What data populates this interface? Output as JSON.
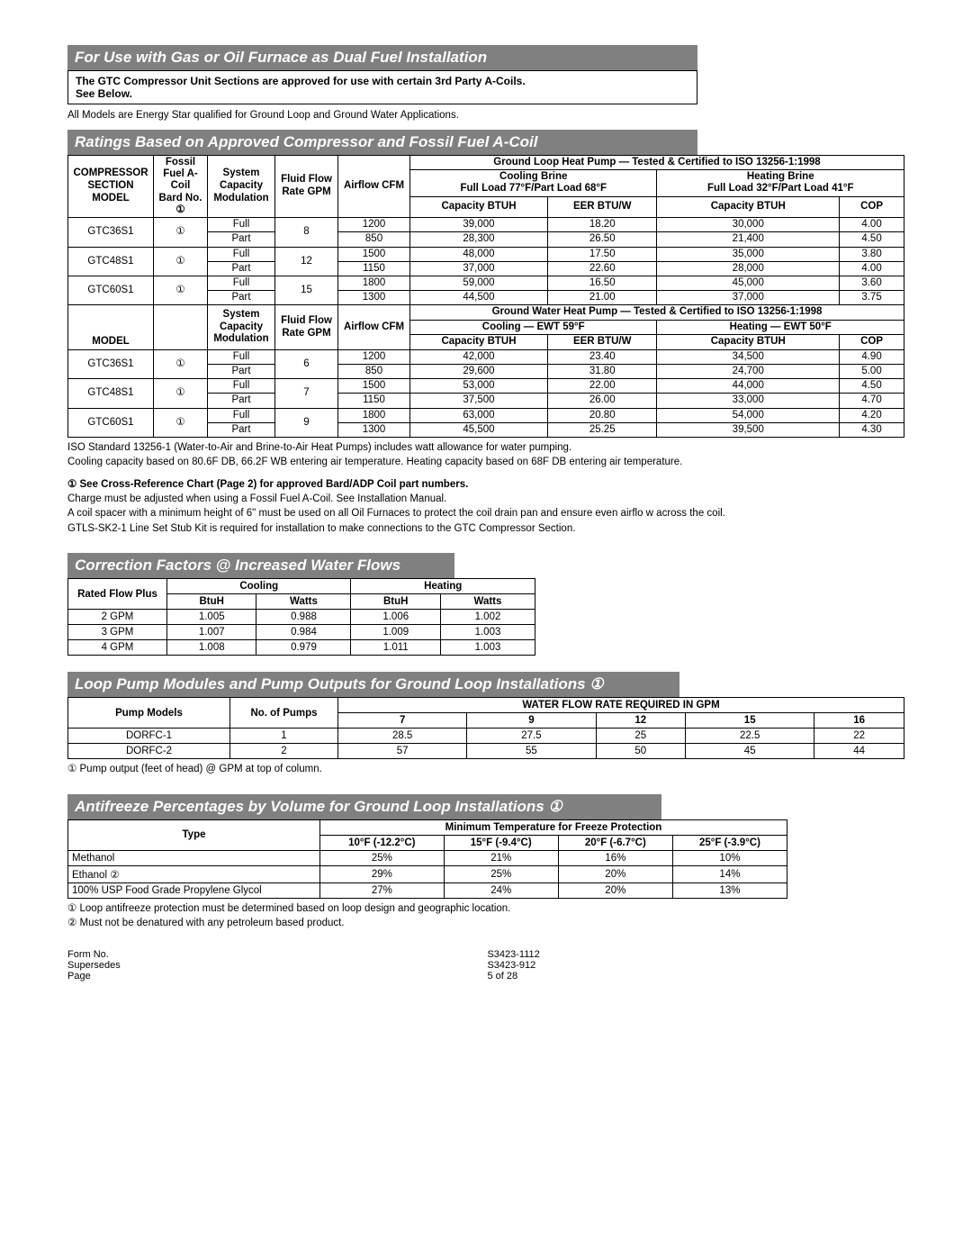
{
  "banners": {
    "dualfuel": "For Use with Gas or Oil Furnace as Dual Fuel Installation",
    "ratings": "Ratings Based on Approved Compressor and Fossil Fuel A-Coil",
    "correction": "Correction Factors @ Increased Water Flows",
    "looppump": "Loop Pump Modules and Pump Outputs for Ground Loop Installations ①",
    "antifreeze": "Antifreeze Percentages by Volume for Ground Loop Installations ①"
  },
  "notebox": {
    "line1": "The GTC Compressor Unit Sections are approved for use with certain 3rd Party A-Coils.",
    "line2": "See Below."
  },
  "energystar_note": "All Models are Energy Star qualified for Ground Loop and Ground Water Applications.",
  "ratings": {
    "gl_header": "Ground Loop Heat Pump — Tested & Certified to ISO 13256-1:1998",
    "gw_header": "Ground Water Heat Pump — Tested & Certified to ISO 13256-1:1998",
    "cb_title": "Cooling Brine",
    "cb_sub": "Full Load 77°F/Part Load 68°F",
    "hb_title": "Heating Brine",
    "hb_sub": "Full Load 32°F/Part Load 41°F",
    "c59": "Cooling — EWT 59°F",
    "h50": "Heating — EWT 50°F",
    "hdr": {
      "comp": "COMPRESSOR SECTION MODEL",
      "coil1": "Fossil Fuel A-Coil",
      "coil2": "Bard No.",
      "coil3": "①",
      "sys": "System Capacity Modulation",
      "ff": "Fluid Flow Rate GPM",
      "af": "Airflow CFM",
      "cap": "Capacity BTUH",
      "eer": "EER BTU/W",
      "cop": "COP",
      "model": "MODEL"
    },
    "gl_rows": [
      {
        "model": "GTC36S1",
        "coil": "①",
        "sys": [
          "Full",
          "Part"
        ],
        "ff": "8",
        "af": [
          "1200",
          "850"
        ],
        "ccap": [
          "39,000",
          "28,300"
        ],
        "eer": [
          "18.20",
          "26.50"
        ],
        "hcap": [
          "30,000",
          "21,400"
        ],
        "cop": [
          "4.00",
          "4.50"
        ]
      },
      {
        "model": "GTC48S1",
        "coil": "①",
        "sys": [
          "Full",
          "Part"
        ],
        "ff": "12",
        "af": [
          "1500",
          "1150"
        ],
        "ccap": [
          "48,000",
          "37,000"
        ],
        "eer": [
          "17.50",
          "22.60"
        ],
        "hcap": [
          "35,000",
          "28,000"
        ],
        "cop": [
          "3.80",
          "4.00"
        ]
      },
      {
        "model": "GTC60S1",
        "coil": "①",
        "sys": [
          "Full",
          "Part"
        ],
        "ff": "15",
        "af": [
          "1800",
          "1300"
        ],
        "ccap": [
          "59,000",
          "44,500"
        ],
        "eer": [
          "16.50",
          "21.00"
        ],
        "hcap": [
          "45,000",
          "37,000"
        ],
        "cop": [
          "3.60",
          "3.75"
        ]
      }
    ],
    "gw_rows": [
      {
        "model": "GTC36S1",
        "coil": "①",
        "sys": [
          "Full",
          "Part"
        ],
        "ff": "6",
        "af": [
          "1200",
          "850"
        ],
        "ccap": [
          "42,000",
          "29,600"
        ],
        "eer": [
          "23.40",
          "31.80"
        ],
        "hcap": [
          "34,500",
          "24,700"
        ],
        "cop": [
          "4.90",
          "5.00"
        ]
      },
      {
        "model": "GTC48S1",
        "coil": "①",
        "sys": [
          "Full",
          "Part"
        ],
        "ff": "7",
        "af": [
          "1500",
          "1150"
        ],
        "ccap": [
          "53,000",
          "37,500"
        ],
        "eer": [
          "22.00",
          "26.00"
        ],
        "hcap": [
          "44,000",
          "33,000"
        ],
        "cop": [
          "4.50",
          "4.70"
        ]
      },
      {
        "model": "GTC60S1",
        "coil": "①",
        "sys": [
          "Full",
          "Part"
        ],
        "ff": "9",
        "af": [
          "1800",
          "1300"
        ],
        "ccap": [
          "63,000",
          "45,500"
        ],
        "eer": [
          "20.80",
          "25.25"
        ],
        "hcap": [
          "54,000",
          "39,500"
        ],
        "cop": [
          "4.20",
          "4.30"
        ]
      }
    ]
  },
  "ratings_footnotes": [
    "ISO Standard 13256-1 (Water-to-Air and Brine-to-Air Heat Pumps) includes watt allowance for water pumping.",
    "Cooling capacity based on 80.6F DB, 66.2F WB entering air temperature.  Heating capacity based on 68F DB entering air temperature."
  ],
  "ratings_footnotes2": [
    {
      "bold": true,
      "text": "①  See Cross-Reference Chart (Page 2) for approved Bard/ADP Coil part numbers."
    },
    {
      "bold": false,
      "text": "Charge must be adjusted when using a Fossil Fuel A-Coil.  See Installation Manual."
    },
    {
      "bold": false,
      "text": "A coil spacer with a minimum height of 6\" must be used on all Oil Furnaces to protect the coil drain pan and ensure even airflo w across the coil."
    },
    {
      "bold": false,
      "text": "GTLS-SK2-1 Line Set Stub Kit is required for installation to make connections to the GTC Compressor Section."
    }
  ],
  "correction": {
    "hdr": {
      "rf": "Rated Flow Plus",
      "cool": "Cooling",
      "heat": "Heating",
      "btuh": "BtuH",
      "watts": "Watts"
    },
    "rows": [
      {
        "flow": "2 GPM",
        "cb": "1.005",
        "cw": "0.988",
        "hb": "1.006",
        "hw": "1.002"
      },
      {
        "flow": "3 GPM",
        "cb": "1.007",
        "cw": "0.984",
        "hb": "1.009",
        "hw": "1.003"
      },
      {
        "flow": "4 GPM",
        "cb": "1.008",
        "cw": "0.979",
        "hb": "1.011",
        "hw": "1.003"
      }
    ]
  },
  "looppump": {
    "hdr": {
      "pm": "Pump Models",
      "np": "No. of Pumps",
      "wfr": "WATER FLOW RATE REQUIRED IN GPM"
    },
    "cols": [
      "7",
      "9",
      "12",
      "15",
      "16"
    ],
    "rows": [
      {
        "m": "DORFC-1",
        "n": "1",
        "v": [
          "28.5",
          "27.5",
          "25",
          "22.5",
          "22"
        ]
      },
      {
        "m": "DORFC-2",
        "n": "2",
        "v": [
          "57",
          "55",
          "50",
          "45",
          "44"
        ]
      }
    ],
    "note": "① Pump output (feet of head) @ GPM at top of column."
  },
  "antifreeze": {
    "hdr": {
      "type": "Type",
      "min": "Minimum Temperature for Freeze Protection"
    },
    "cols": [
      "10°F (-12.2°C)",
      "15°F (-9.4°C)",
      "20°F (-6.7°C)",
      "25°F (-3.9°C)"
    ],
    "rows": [
      {
        "t": "Methanol",
        "v": [
          "25%",
          "21%",
          "16%",
          "10%"
        ]
      },
      {
        "t": "Ethanol  ②",
        "v": [
          "29%",
          "25%",
          "20%",
          "14%"
        ]
      },
      {
        "t": "100% USP Food Grade Propylene Glycol",
        "v": [
          "27%",
          "24%",
          "20%",
          "13%"
        ]
      }
    ],
    "notes": [
      "① Loop antifreeze protection must be determined based on loop design and geographic location.",
      "② Must not be denatured with any petroleum based product."
    ]
  },
  "footer": {
    "form_label": "Form No.",
    "form": "S3423-1112",
    "sup_label": "Supersedes",
    "sup": "S3423-912",
    "page_label": "Page",
    "page": "5 of 28"
  }
}
